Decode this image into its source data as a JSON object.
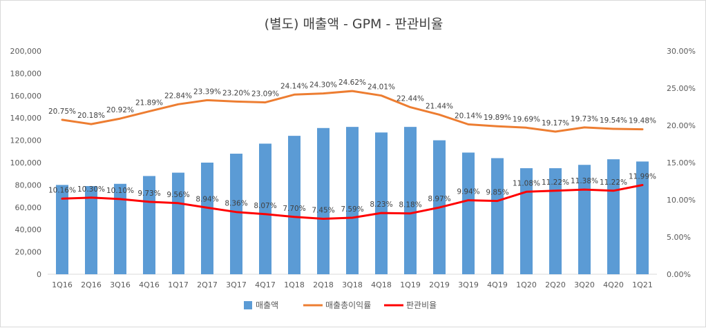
{
  "chart_data": {
    "type": "bar+line",
    "title": "(별도) 매출액 - GPM - 판관비율",
    "categories": [
      "1Q16",
      "2Q16",
      "3Q16",
      "4Q16",
      "1Q17",
      "2Q17",
      "3Q17",
      "4Q17",
      "1Q18",
      "2Q18",
      "3Q18",
      "4Q18",
      "1Q19",
      "2Q19",
      "3Q19",
      "4Q19",
      "1Q20",
      "2Q20",
      "3Q20",
      "4Q20",
      "1Q21"
    ],
    "left_axis": {
      "min": 0,
      "max": 200000,
      "step": 20000,
      "tick_labels": [
        "0",
        "20,000",
        "40,000",
        "60,000",
        "80,000",
        "100,000",
        "120,000",
        "140,000",
        "160,000",
        "180,000",
        "200,000"
      ]
    },
    "right_axis": {
      "min": 0,
      "max": 30,
      "step": 5,
      "tick_labels": [
        "0.00%",
        "5.00%",
        "10.00%",
        "15.00%",
        "20.00%",
        "25.00%",
        "30.00%"
      ]
    },
    "series": [
      {
        "name": "매출액",
        "type": "bar",
        "axis": "left",
        "color": "#5b9bd5",
        "values": [
          80000,
          79000,
          81000,
          88000,
          91000,
          100000,
          108000,
          117000,
          124000,
          131000,
          132000,
          127000,
          132000,
          120000,
          109000,
          104000,
          95000,
          95000,
          98000,
          103000,
          101000
        ]
      },
      {
        "name": "매출총이익률",
        "type": "line",
        "axis": "right",
        "color": "#ed7d31",
        "values": [
          20.75,
          20.18,
          20.92,
          21.89,
          22.84,
          23.39,
          23.2,
          23.09,
          24.14,
          24.3,
          24.62,
          24.01,
          22.44,
          21.44,
          20.14,
          19.89,
          19.69,
          19.17,
          19.73,
          19.54,
          19.48
        ],
        "labels": [
          "20.75%",
          "20.18%",
          "20.92%",
          "21.89%",
          "22.84%",
          "23.39%",
          "23.20%",
          "23.09%",
          "24.14%",
          "24.30%",
          "24.62%",
          "24.01%",
          "22.44%",
          "21.44%",
          "20.14%",
          "19.89%",
          "19.69%",
          "19.17%",
          "19.73%",
          "19.54%",
          "19.48%"
        ]
      },
      {
        "name": "판관비율",
        "type": "line",
        "axis": "right",
        "color": "#ff0000",
        "values": [
          10.16,
          10.3,
          10.1,
          9.73,
          9.56,
          8.94,
          8.36,
          8.07,
          7.7,
          7.45,
          7.59,
          8.23,
          8.18,
          8.97,
          9.94,
          9.85,
          11.08,
          11.22,
          11.38,
          11.22,
          11.99
        ],
        "labels": [
          "10.16%",
          "10.30%",
          "10.10%",
          "9.73%",
          "9.56%",
          "8.94%",
          "8.36%",
          "8.07%",
          "7.70%",
          "7.45%",
          "7.59%",
          "8.23%",
          "8.18%",
          "8.97%",
          "9.94%",
          "9.85%",
          "11.08%",
          "11.22%",
          "11.38%",
          "11.22%",
          "11.99%"
        ]
      }
    ],
    "legend_position": "bottom-center",
    "grid": false
  }
}
